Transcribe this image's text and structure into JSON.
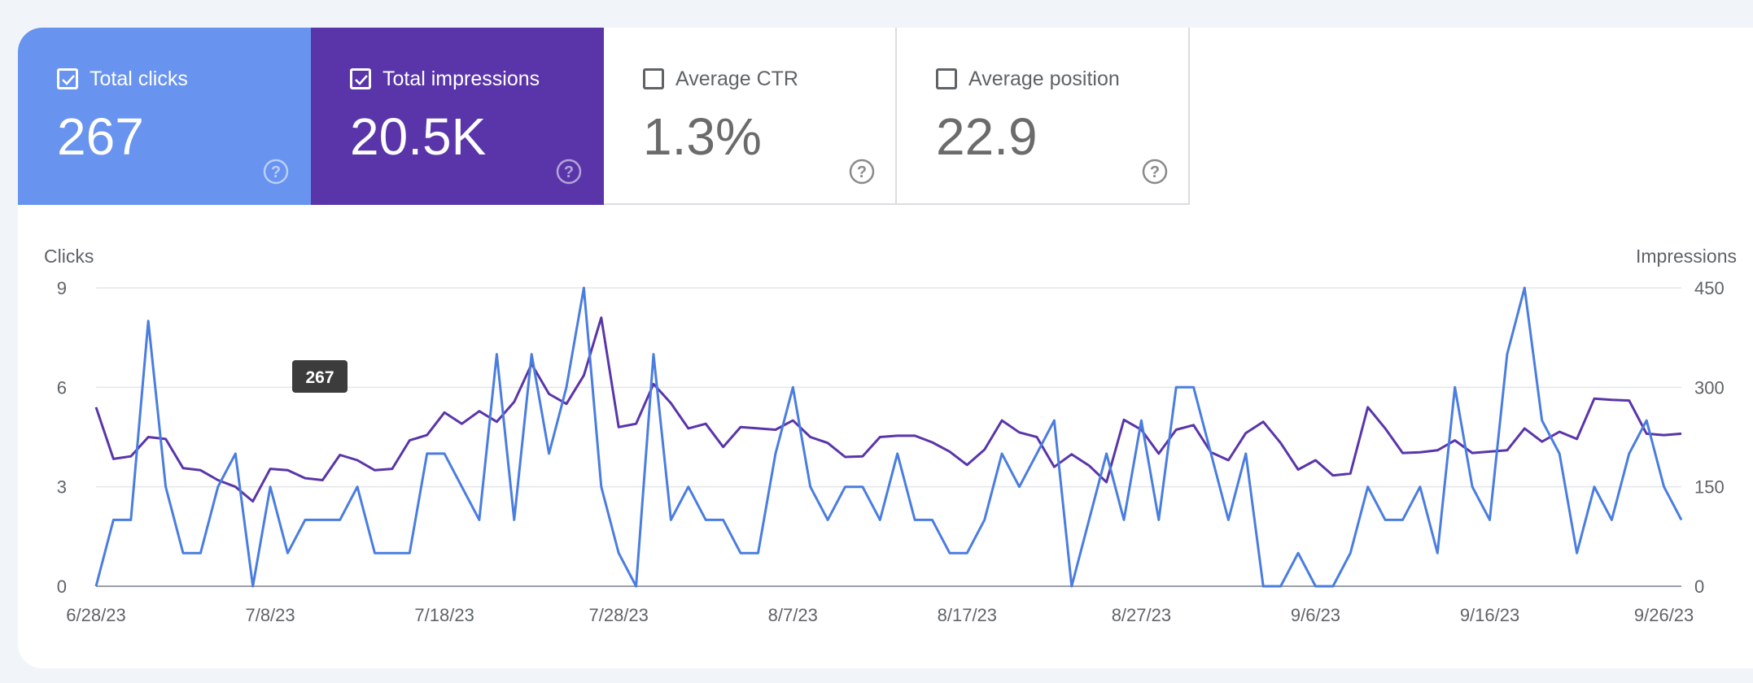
{
  "metrics": [
    {
      "label": "Total clicks",
      "value": "267",
      "checked": true,
      "color": "#6893ef"
    },
    {
      "label": "Total impressions",
      "value": "20.5K",
      "checked": true,
      "color": "#5a35a9"
    },
    {
      "label": "Average CTR",
      "value": "1.3%",
      "checked": false
    },
    {
      "label": "Average position",
      "value": "22.9",
      "checked": false
    }
  ],
  "icons": {
    "checkbox": "checkbox-icon",
    "help": "help-circle-icon"
  },
  "tooltip": {
    "text": "267"
  },
  "chart_data": {
    "type": "line",
    "title": "",
    "xlabel": "",
    "ylabel_left": "Clicks",
    "ylabel_right": "Impressions",
    "ylim_left": [
      0,
      9
    ],
    "ylim_right": [
      0,
      450
    ],
    "yticks_left": [
      "0",
      "3",
      "6",
      "9"
    ],
    "yticks_right": [
      "0",
      "150",
      "300",
      "450"
    ],
    "x_tick_labels": [
      "6/28/23",
      "7/8/23",
      "7/18/23",
      "7/28/23",
      "8/7/23",
      "8/17/23",
      "8/27/23",
      "9/6/23",
      "9/16/23",
      "9/26/23"
    ],
    "x_start": "6/28/23",
    "x_end": "9/27/23",
    "grid": true,
    "series": [
      {
        "name": "Clicks",
        "axis": "left",
        "color": "#4a7de0",
        "values": [
          0,
          2,
          2,
          8,
          3,
          1,
          1,
          3,
          4,
          0,
          3,
          1,
          2,
          2,
          2,
          3,
          1,
          1,
          1,
          4,
          4,
          3,
          2,
          7,
          2,
          7,
          4,
          6,
          9,
          3,
          1,
          0,
          7,
          2,
          3,
          2,
          2,
          1,
          1,
          4,
          6,
          3,
          2,
          3,
          3,
          2,
          4,
          2,
          2,
          1,
          1,
          2,
          4,
          3,
          4,
          5,
          0,
          2,
          4,
          2,
          5,
          2,
          6,
          6,
          4,
          2,
          4,
          0,
          0,
          1,
          0,
          0,
          1,
          3,
          2,
          2,
          3,
          1,
          6,
          3,
          2,
          7,
          9,
          5,
          4,
          1,
          3,
          2,
          4,
          5,
          3,
          2
        ]
      },
      {
        "name": "Impressions",
        "axis": "right",
        "color": "#5a35a9",
        "values": [
          270,
          192,
          196,
          225,
          222,
          178,
          175,
          160,
          150,
          128,
          177,
          175,
          163,
          160,
          198,
          190,
          175,
          177,
          220,
          228,
          262,
          245,
          264,
          248,
          278,
          335,
          290,
          275,
          318,
          405,
          240,
          245,
          305,
          276,
          238,
          245,
          210,
          240,
          238,
          236,
          250,
          225,
          216,
          195,
          196,
          225,
          227,
          227,
          217,
          203,
          183,
          206,
          250,
          232,
          225,
          180,
          199,
          182,
          157,
          251,
          236,
          200,
          236,
          243,
          202,
          190,
          231,
          248,
          216,
          176,
          190,
          167,
          170,
          270,
          238,
          201,
          202,
          205,
          220,
          201,
          203,
          205,
          238,
          218,
          233,
          222,
          283,
          281,
          280,
          230,
          228,
          230
        ]
      }
    ]
  }
}
